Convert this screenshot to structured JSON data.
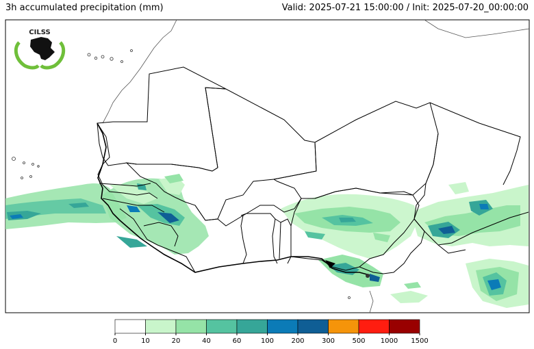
{
  "header": {
    "title": "3h accumulated precipitation (mm)",
    "valid_init": "Valid: 2025-07-21 15:00:00 / Init: 2025-07-20_00:00:00"
  },
  "logo": {
    "text": "CILSS"
  },
  "colorbar": {
    "bins": [
      {
        "label": "0",
        "color": "#ffffff"
      },
      {
        "label": "10",
        "color": "#c9f5cb"
      },
      {
        "label": "20",
        "color": "#95e3a7"
      },
      {
        "label": "40",
        "color": "#55c3a0"
      },
      {
        "label": "60",
        "color": "#36a698"
      },
      {
        "label": "100",
        "color": "#0b7bb7"
      },
      {
        "label": "200",
        "color": "#0f5e95"
      },
      {
        "label": "300",
        "color": "#f5940a"
      },
      {
        "label": "500",
        "color": "#ff1d10"
      },
      {
        "label": "1000",
        "color": "#990000"
      }
    ],
    "last_label": "1500"
  }
}
